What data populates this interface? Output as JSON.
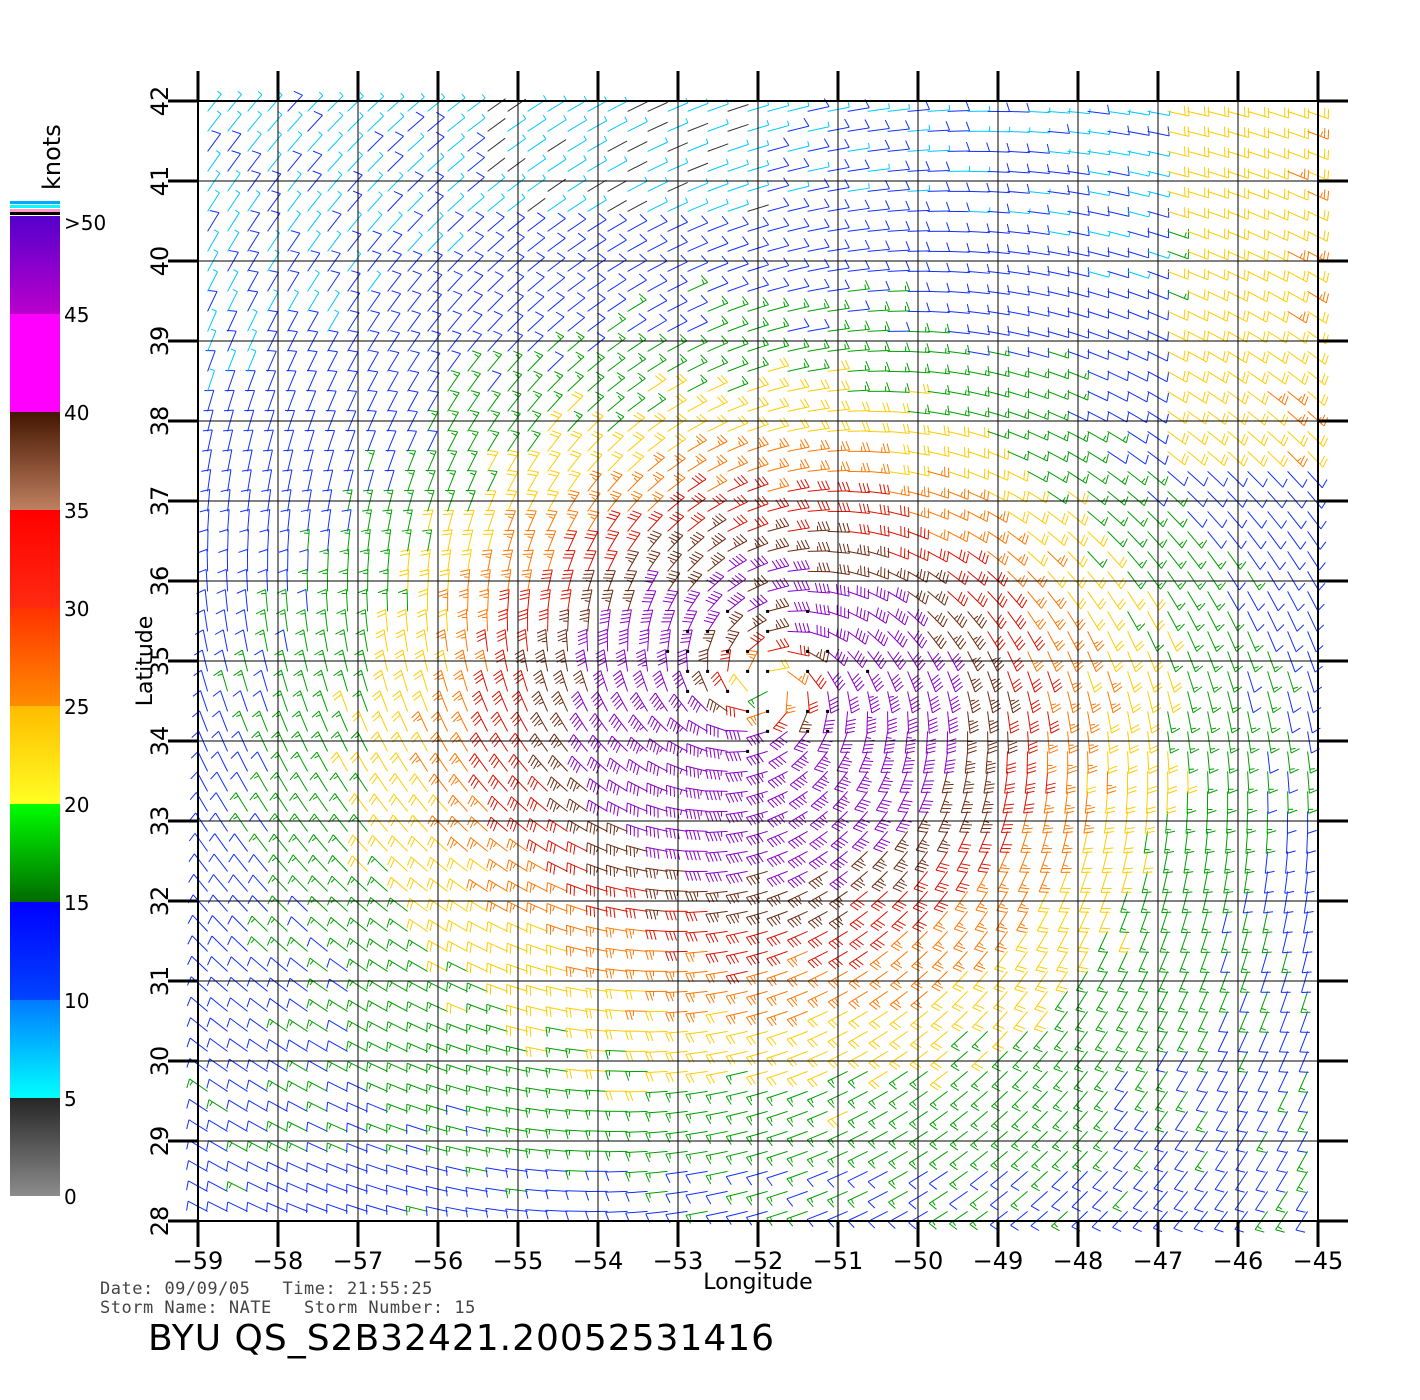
{
  "chart_data": {
    "type": "wind-barb-map",
    "xlabel": "Longitude",
    "ylabel": "Latitude",
    "xlim": [
      -59,
      -45
    ],
    "ylim": [
      28,
      42
    ],
    "x_ticks": [
      "−59",
      "−58",
      "−57",
      "−56",
      "−55",
      "−54",
      "−53",
      "−52",
      "−51",
      "−50",
      "−49",
      "−48",
      "−47",
      "−46",
      "−45"
    ],
    "y_ticks": [
      "28",
      "29",
      "30",
      "31",
      "32",
      "33",
      "34",
      "35",
      "36",
      "37",
      "38",
      "39",
      "40",
      "41",
      "42"
    ],
    "grid": true,
    "colorbar": {
      "unit": "knots",
      "labels": [
        "0",
        "5",
        "10",
        "15",
        "20",
        "25",
        "30",
        "35",
        "40",
        "45",
        ">50"
      ],
      "bins": [
        {
          "range": [
            0,
            5
          ],
          "from": "#8c8c8c",
          "to": "#262626"
        },
        {
          "range": [
            5,
            10
          ],
          "from": "#00ffff",
          "to": "#007bff"
        },
        {
          "range": [
            10,
            15
          ],
          "from": "#0044ff",
          "to": "#0000ff"
        },
        {
          "range": [
            15,
            20
          ],
          "from": "#006b00",
          "to": "#00ff00"
        },
        {
          "range": [
            20,
            25
          ],
          "from": "#ffff22",
          "to": "#ffbb00"
        },
        {
          "range": [
            25,
            30
          ],
          "from": "#ff8c00",
          "to": "#ff3300"
        },
        {
          "range": [
            30,
            35
          ],
          "from": "#ff2a10",
          "to": "#ff0000"
        },
        {
          "range": [
            35,
            40
          ],
          "from": "#c08060",
          "to": "#441500"
        },
        {
          "range": [
            40,
            45
          ],
          "from": "#ff00ff",
          "to": "#ff00ff"
        },
        {
          "range": [
            45,
            50
          ],
          "from": "#bb00cc",
          "to": "#5500cc"
        }
      ]
    },
    "storm_center": {
      "lon": -51.9,
      "lat": 34.7
    },
    "peak_wind_knots": 48,
    "barb_colors": {
      "calm": "#333333",
      "cyan": "#00c8ff",
      "blue": "#1030ff",
      "green": "#00a000",
      "yellow": "#ffcc00",
      "orange": "#ff7700",
      "red": "#dd1100",
      "brown": "#6b2a10",
      "purple": "#8a00c8"
    }
  },
  "footer": {
    "date_label": "Date:",
    "date": "09/09/05",
    "time_label": "Time:",
    "time": "21:55:25",
    "storm_name_label": "Storm Name:",
    "storm_name": "NATE",
    "storm_number_label": "Storm Number:",
    "storm_number": "15",
    "product": "BYU QS_S2B32421.20052531416"
  }
}
